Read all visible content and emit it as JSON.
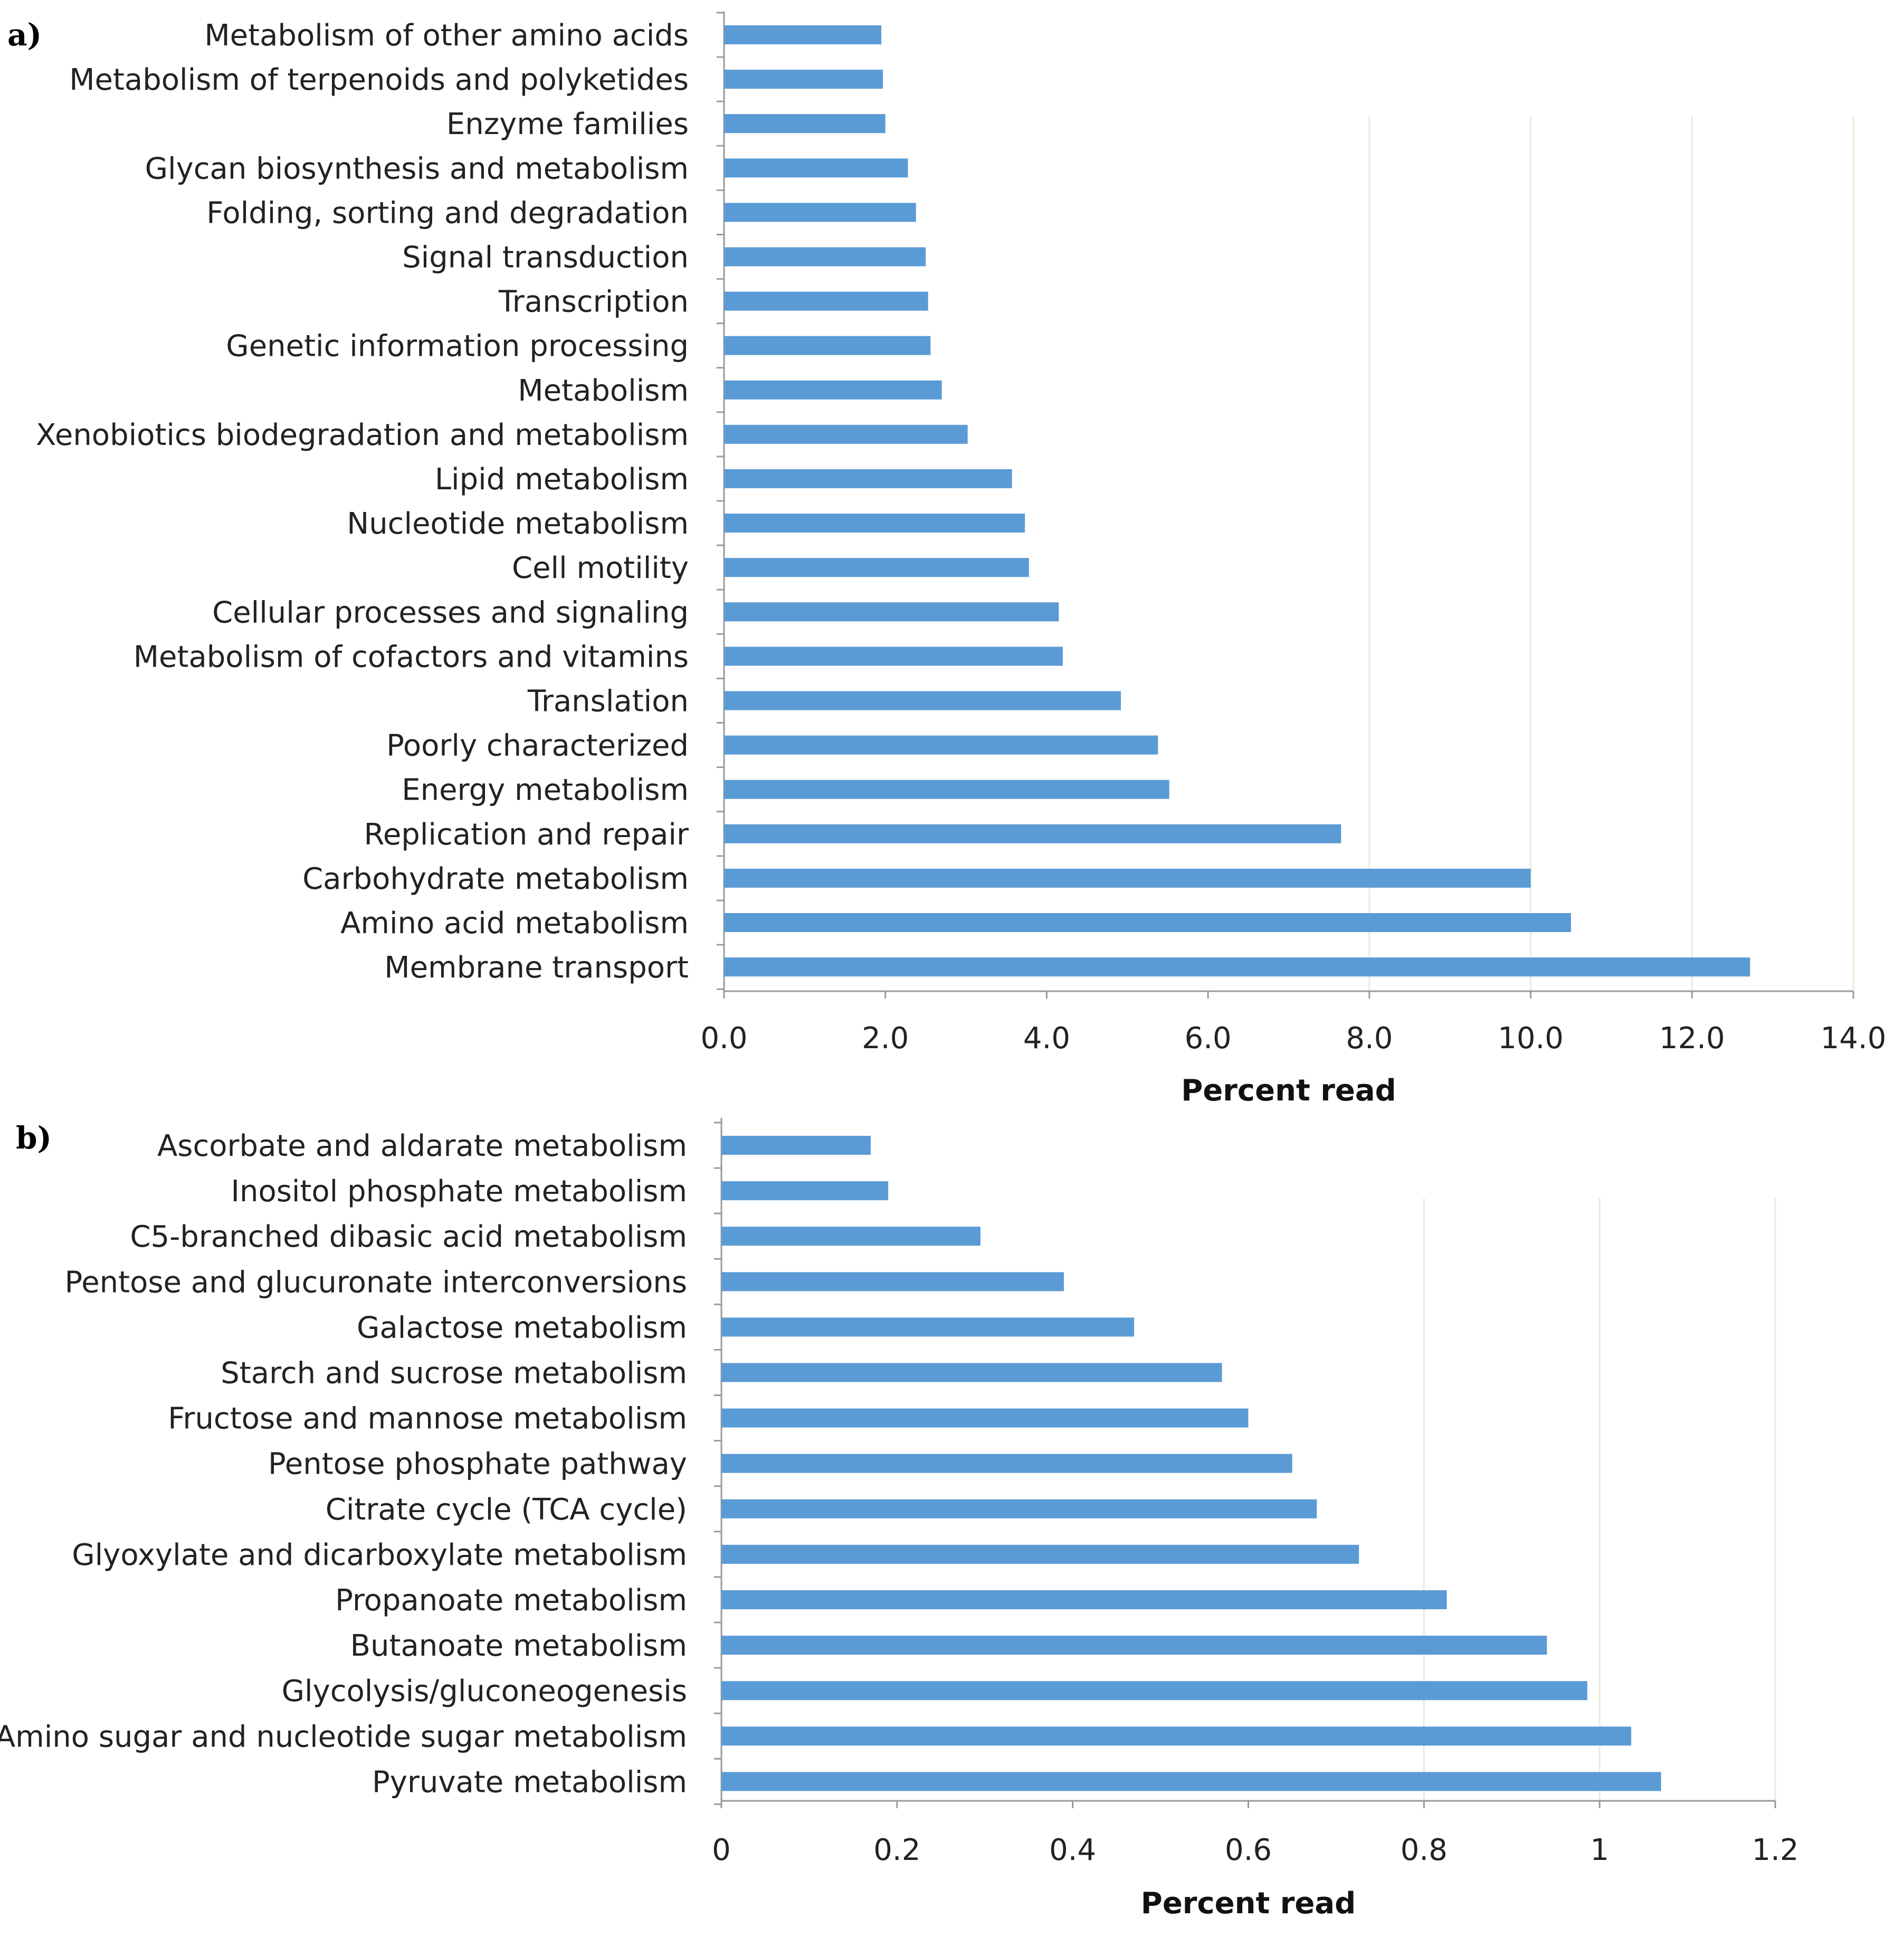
{
  "chart_data": [
    {
      "panel": "a)",
      "type": "bar",
      "orientation": "horizontal",
      "categories": [
        "Metabolism of other amino acids",
        "Metabolism of terpenoids and polyketides",
        "Enzyme families",
        "Glycan biosynthesis and metabolism",
        "Folding, sorting and degradation",
        "Signal transduction",
        "Transcription",
        "Genetic information processing",
        "Metabolism",
        "Xenobiotics biodegradation and metabolism",
        "Lipid metabolism",
        "Nucleotide metabolism",
        "Cell motility",
        "Cellular processes and signaling",
        "Metabolism of cofactors and vitamins",
        "Translation",
        "Poorly characterized",
        "Energy metabolism",
        "Replication and repair",
        "Carbohydrate metabolism",
        "Amino acid metabolism",
        "Membrane transport"
      ],
      "values": [
        1.95,
        1.97,
        2.0,
        2.28,
        2.38,
        2.5,
        2.53,
        2.56,
        2.7,
        3.02,
        3.57,
        3.73,
        3.78,
        4.15,
        4.2,
        4.92,
        5.38,
        5.52,
        7.65,
        10.0,
        10.5,
        12.72
      ],
      "xlabel": "Percent read",
      "xlim": [
        0,
        14
      ],
      "xticks": [
        "0.0",
        "2.0",
        "4.0",
        "6.0",
        "8.0",
        "10.0",
        "12.0",
        "14.0"
      ],
      "bar_color": "#5b9bd5",
      "grid": true
    },
    {
      "panel": "b)",
      "type": "bar",
      "orientation": "horizontal",
      "categories": [
        "Ascorbate and aldarate metabolism",
        "Inositol phosphate metabolism",
        "C5-branched dibasic acid metabolism",
        "Pentose and glucuronate interconversions",
        "Galactose metabolism",
        "Starch and sucrose metabolism",
        "Fructose and mannose metabolism",
        "Pentose phosphate pathway",
        "Citrate cycle (TCA cycle)",
        "Glyoxylate and dicarboxylate metabolism",
        "Propanoate metabolism",
        "Butanoate metabolism",
        "Glycolysis/gluconeogenesis",
        "Amino sugar and nucleotide sugar metabolism",
        "Pyruvate metabolism"
      ],
      "values": [
        0.17,
        0.19,
        0.295,
        0.39,
        0.47,
        0.57,
        0.6,
        0.65,
        0.678,
        0.726,
        0.826,
        0.94,
        0.986,
        1.036,
        1.07
      ],
      "xlabel": "Percent read",
      "xlim": [
        0,
        1.2
      ],
      "xticks": [
        "0",
        "0.2",
        "0.4",
        "0.6",
        "0.8",
        "1",
        "1.2"
      ],
      "bar_color": "#5b9bd5",
      "grid": true
    }
  ]
}
